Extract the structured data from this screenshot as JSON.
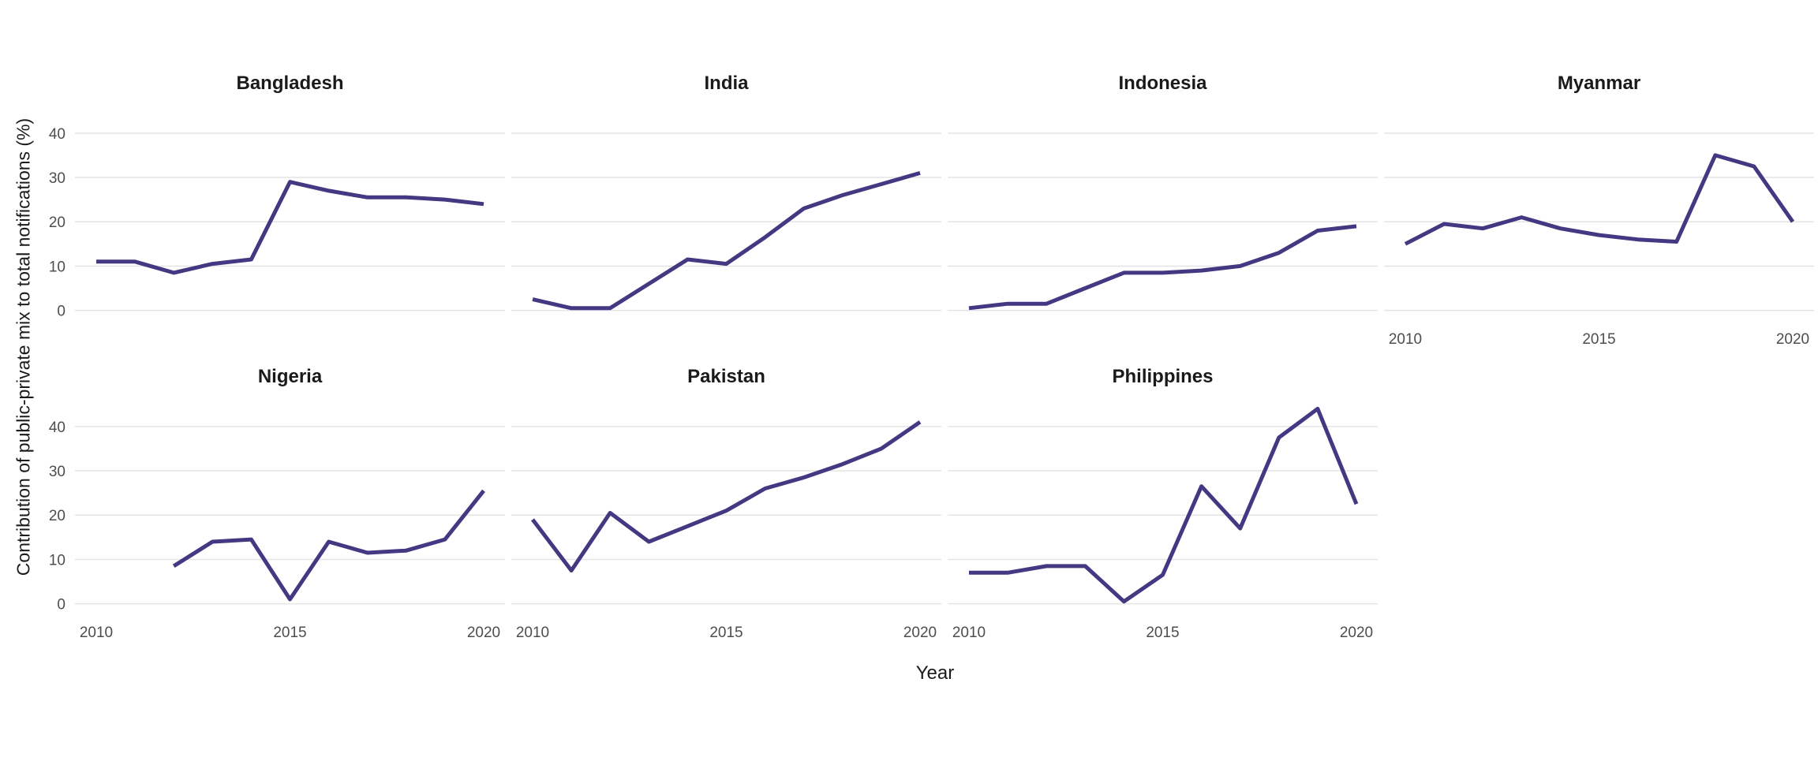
{
  "chart_data": {
    "type": "line",
    "title": "",
    "xlabel": "Year",
    "ylabel": "Contribution of public-private mix to total notifications (%)",
    "x": [
      2010,
      2011,
      2012,
      2013,
      2014,
      2015,
      2016,
      2017,
      2018,
      2019,
      2020
    ],
    "x_ticks": [
      2010,
      2015,
      2020
    ],
    "y_ticks": [
      0,
      10,
      20,
      30,
      40
    ],
    "ylim": [
      -2.2,
      46.2
    ],
    "grid": "horizontal-major",
    "legend": "none",
    "line_color": "#453781",
    "grid_color": "#e4e4e4",
    "tick_label_color": "#4d4d4d",
    "series": [
      {
        "name": "Bangladesh",
        "values": [
          11,
          11,
          8.5,
          10.5,
          11.5,
          29,
          27,
          25.5,
          25.5,
          25,
          24
        ]
      },
      {
        "name": "India",
        "values": [
          2.5,
          0.5,
          0.5,
          6,
          11.5,
          10.5,
          16.5,
          23,
          26,
          28.5,
          31
        ]
      },
      {
        "name": "Indonesia",
        "values": [
          0.5,
          1.5,
          1.5,
          5,
          8.5,
          8.5,
          9,
          10,
          13,
          18,
          19
        ]
      },
      {
        "name": "Myanmar",
        "values": [
          15,
          19.5,
          18.5,
          21,
          18.5,
          17,
          16,
          15.5,
          35,
          32.5,
          20
        ]
      },
      {
        "name": "Nigeria",
        "values": [
          null,
          null,
          8.5,
          14,
          14.5,
          1,
          14,
          11.5,
          12,
          14.5,
          25.5
        ]
      },
      {
        "name": "Pakistan",
        "values": [
          19,
          7.5,
          20.5,
          14,
          17.5,
          21,
          26,
          28.5,
          31.5,
          35,
          41
        ]
      },
      {
        "name": "Philippines",
        "values": [
          7,
          7,
          8.5,
          8.5,
          0.5,
          6.5,
          26.5,
          17,
          37.5,
          44,
          22.5
        ]
      }
    ],
    "layout": {
      "ncol": 4,
      "panels_with_x_axis": [
        "Myanmar",
        "Nigeria",
        "Pakistan",
        "Philippines"
      ],
      "panels_with_y_axis": [
        "Bangladesh",
        "Nigeria"
      ]
    }
  }
}
